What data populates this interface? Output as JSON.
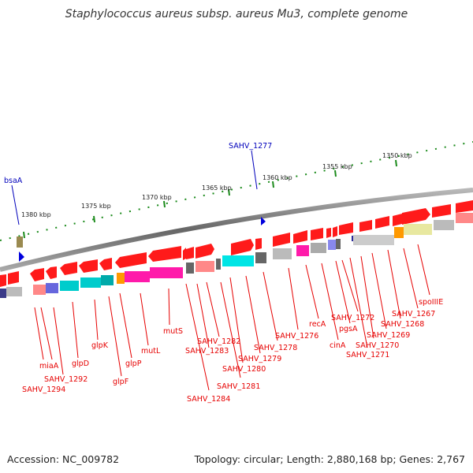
{
  "title": "Staphylococcus aureus subsp. aureus Mu3, complete genome",
  "accession": "Accession: NC_009782",
  "summary": "Topology: circular; Length: 2,880,168 bp; Genes: 2,767",
  "scale_ticks": [
    "1380 kbp",
    "1375 kbp",
    "1370 kbp",
    "1365 kbp",
    "1360 kbp",
    "1355 kbp",
    "1350 kbp"
  ],
  "markers": [
    "bsaA",
    "SAHV_1277"
  ],
  "gene_labels": [
    "miaA",
    "SAHV_1292",
    "SAHV_1294",
    "glpD",
    "glpK",
    "glpF",
    "glpP",
    "mutL",
    "mutS",
    "SAHV_1282",
    "SAHV_1283",
    "SAHV_1284",
    "SAHV_1281",
    "SAHV_1280",
    "SAHV_1279",
    "SAHV_1278",
    "SAHV_1276",
    "recA",
    "cinA",
    "pgsA",
    "SAHV_1272",
    "SAHV_1271",
    "SAHV_1270",
    "SAHV_1269",
    "SAHV_1268",
    "SAHV_1267",
    "spoIIIE"
  ],
  "colors": {
    "gene_arrow": "#ff0000",
    "label": "#e60000",
    "marker": "#0000bb",
    "tick": "#1a8a1a",
    "backbone": "#888888"
  }
}
